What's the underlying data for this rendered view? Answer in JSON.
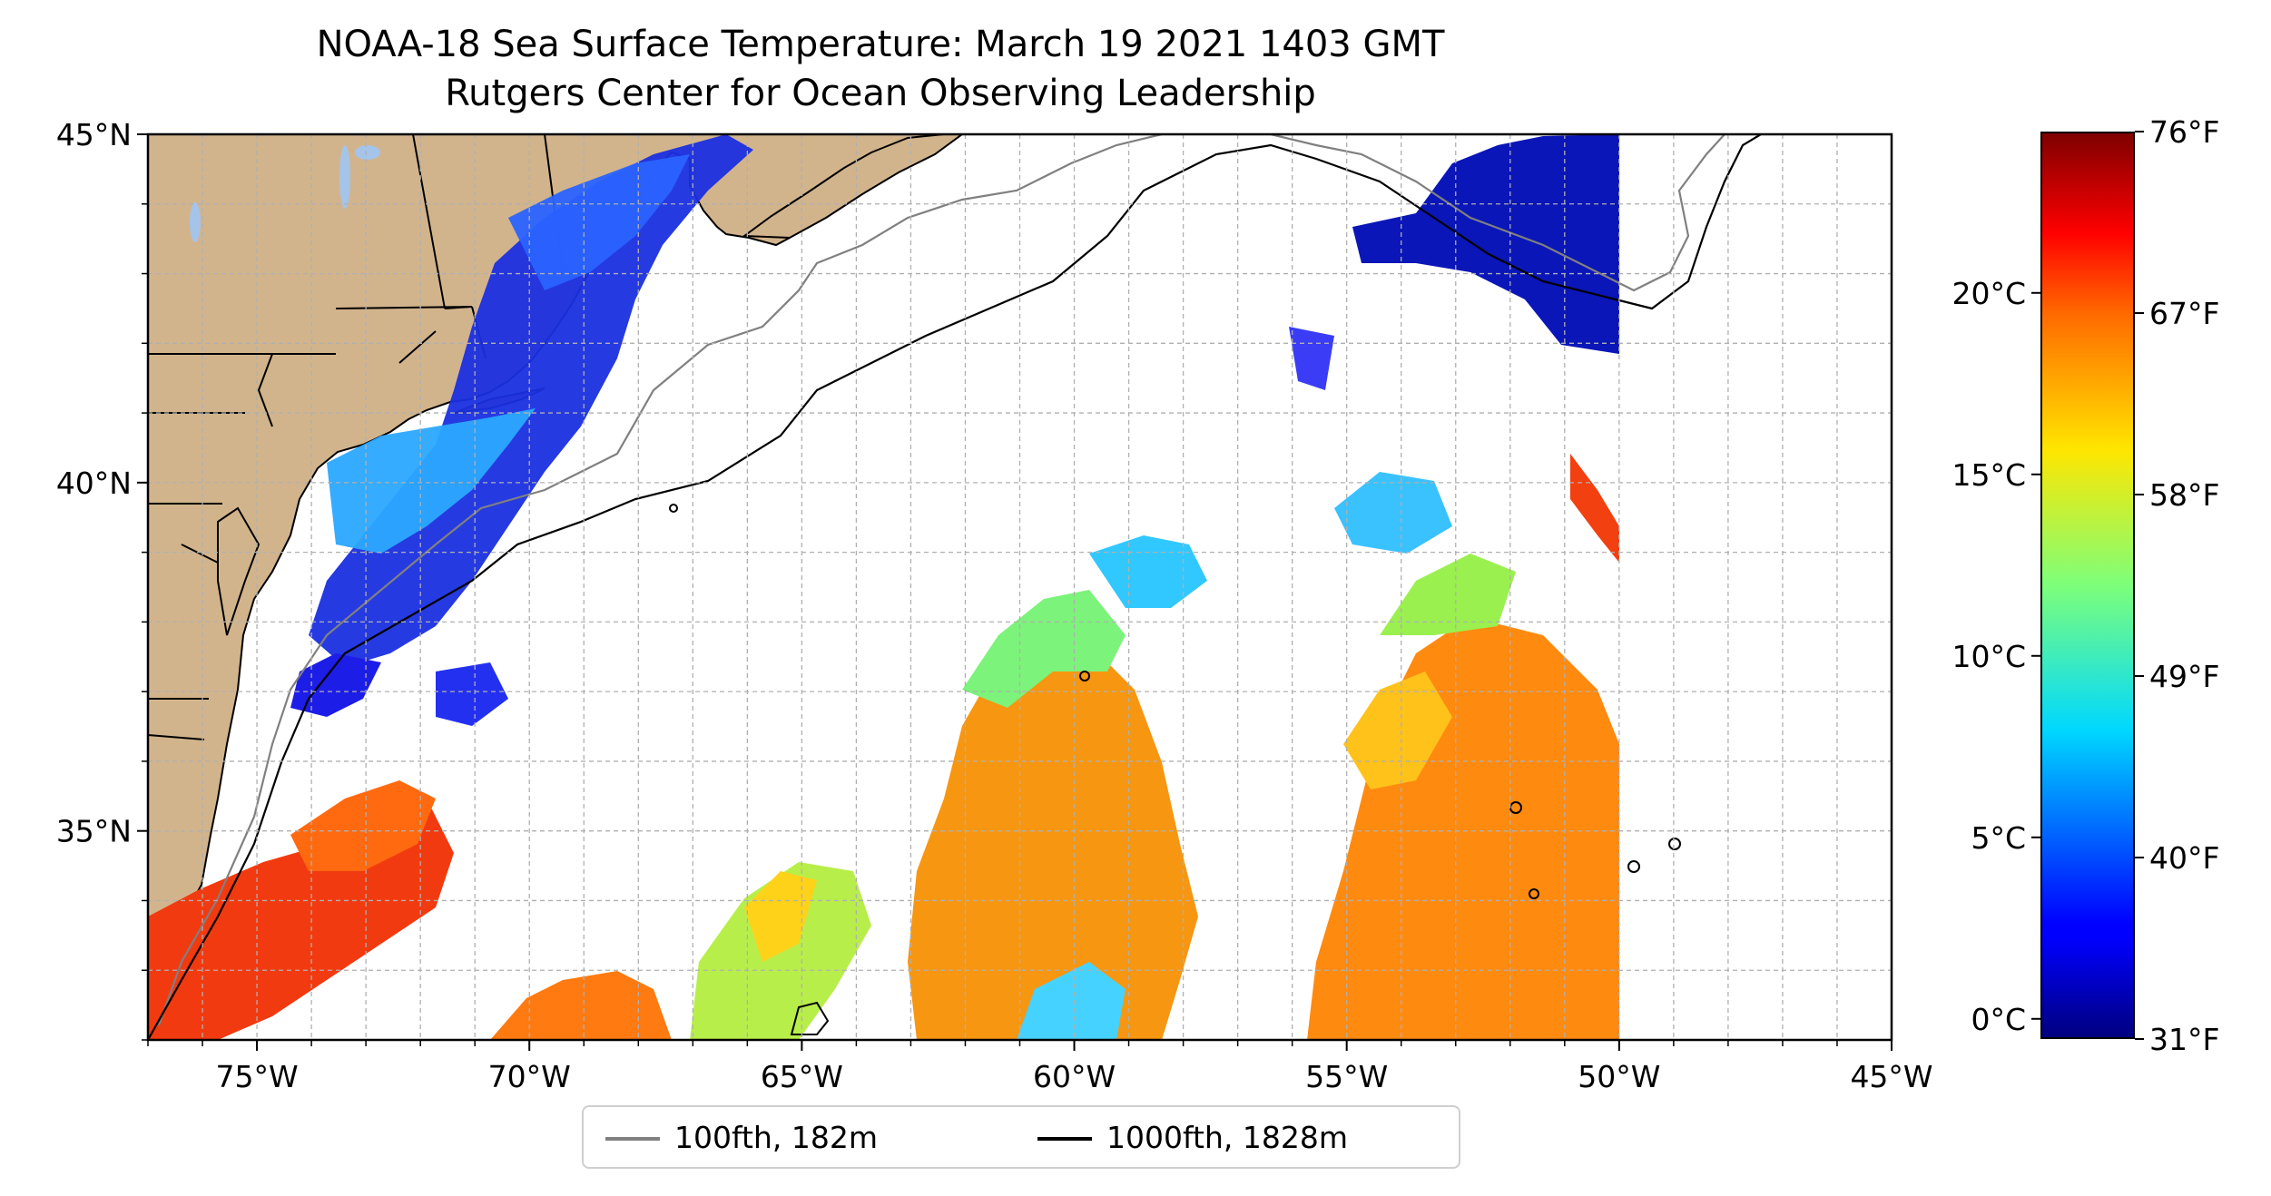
{
  "title": {
    "line1": "NOAA-18 Sea Surface Temperature: March 19 2021 1403 GMT",
    "line2": "Rutgers Center for Ocean Observing Leadership"
  },
  "map": {
    "lon_range": [
      -77,
      -45
    ],
    "lat_range": [
      32,
      45
    ],
    "lon_ticks": [
      "75°W",
      "70°W",
      "65°W",
      "60°W",
      "55°W",
      "50°W",
      "45°W"
    ],
    "lat_ticks": [
      "35°N",
      "40°N",
      "45°N"
    ],
    "land_color": "#d2b48c",
    "lake_color": "#a4c4ea",
    "grid": "dashed",
    "data_edge_lon": -50
  },
  "colorbar": {
    "colormap": "jet",
    "celsius_ticks": [
      "0°C",
      "5°C",
      "10°C",
      "15°C",
      "20°C"
    ],
    "fahrenheit_ticks": [
      "31°F",
      "40°F",
      "49°F",
      "58°F",
      "67°F",
      "76°F"
    ],
    "range_f": [
      31,
      76
    ]
  },
  "legend": {
    "items": [
      {
        "label": "100fth, 182m",
        "color": "#808080"
      },
      {
        "label": "1000fth, 1828m",
        "color": "#000000"
      }
    ],
    "placement": "bottom-center"
  }
}
